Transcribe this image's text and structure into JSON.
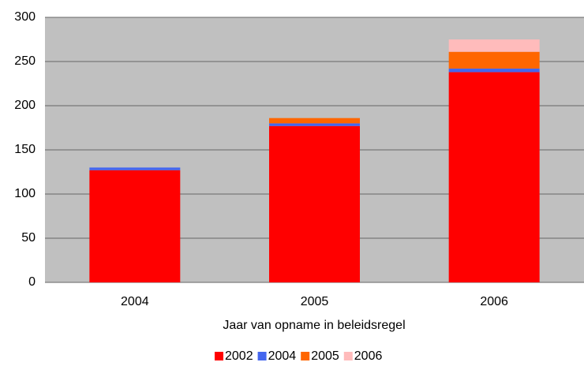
{
  "chart_data": {
    "type": "stacked_bar",
    "x_label": "Jaar van opname in beleidsregel",
    "categories": [
      "2004",
      "2005",
      "2006"
    ],
    "series": [
      {
        "name": "2002",
        "color": "#ff0000",
        "values": [
          127,
          177,
          238
        ]
      },
      {
        "name": "2004",
        "color": "#4466ee",
        "values": [
          3,
          3,
          4
        ]
      },
      {
        "name": "2005",
        "color": "#ff6600",
        "values": [
          0,
          6,
          19
        ]
      },
      {
        "name": "2006",
        "color": "#ffbbbb",
        "values": [
          0,
          0,
          14
        ]
      }
    ],
    "ylim": [
      0,
      300
    ],
    "yticks": [
      0,
      50,
      100,
      150,
      200,
      250,
      300
    ],
    "grid": true,
    "legend": "bottom"
  }
}
